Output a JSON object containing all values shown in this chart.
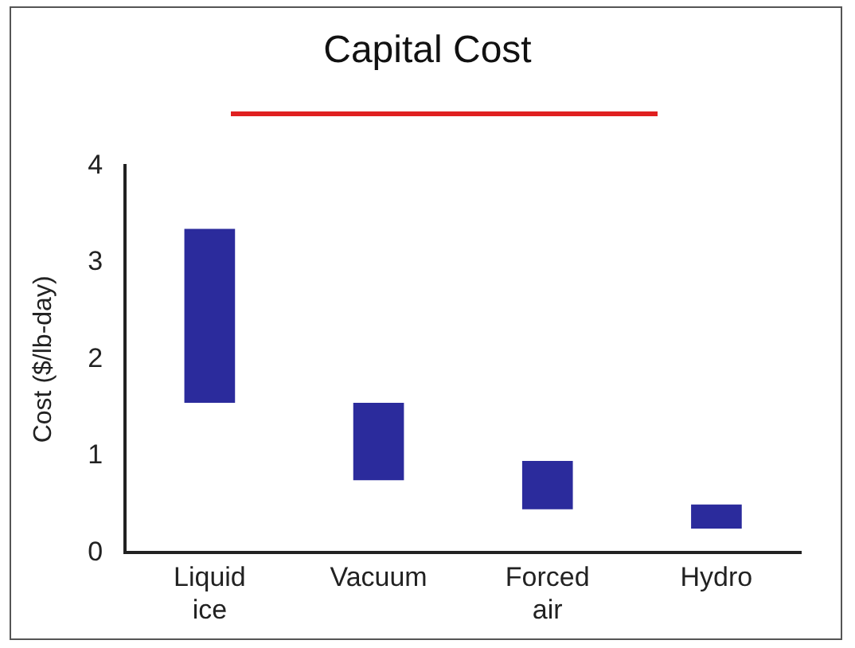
{
  "chart_data": {
    "type": "bar",
    "title": "Capital Cost",
    "ylabel": "Cost ($/lb-day)",
    "categories": [
      "Liquid ice",
      "Vacuum",
      "Forced air",
      "Hydro"
    ],
    "values": [
      1.8,
      0.8,
      0.5,
      0.25
    ],
    "base": [
      1.55,
      0.75,
      0.45,
      0.25
    ],
    "color": "#2b2b9c",
    "ylim": [
      0,
      4
    ],
    "yticks": [
      0,
      1,
      2,
      3,
      4
    ],
    "grid": false,
    "legend": false
  }
}
